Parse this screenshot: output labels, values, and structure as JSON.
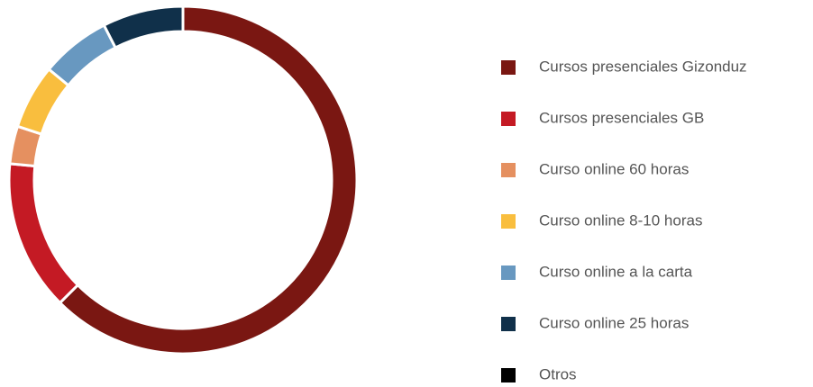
{
  "chart_data": {
    "type": "donut",
    "categories": [
      "Cursos presenciales Gizonduz",
      "Cursos presenciales GB",
      "Curso online 60 horas",
      "Curso online 8-10 horas",
      "Curso online a la carta",
      "Curso online 25 horas",
      "Otros"
    ],
    "values": [
      62.5,
      14,
      3.5,
      6,
      6.5,
      7.5,
      0
    ],
    "colors": [
      "#7a1712",
      "#c41a24",
      "#e59060",
      "#f9be3e",
      "#6898c0",
      "#10304a",
      "#000000"
    ]
  }
}
